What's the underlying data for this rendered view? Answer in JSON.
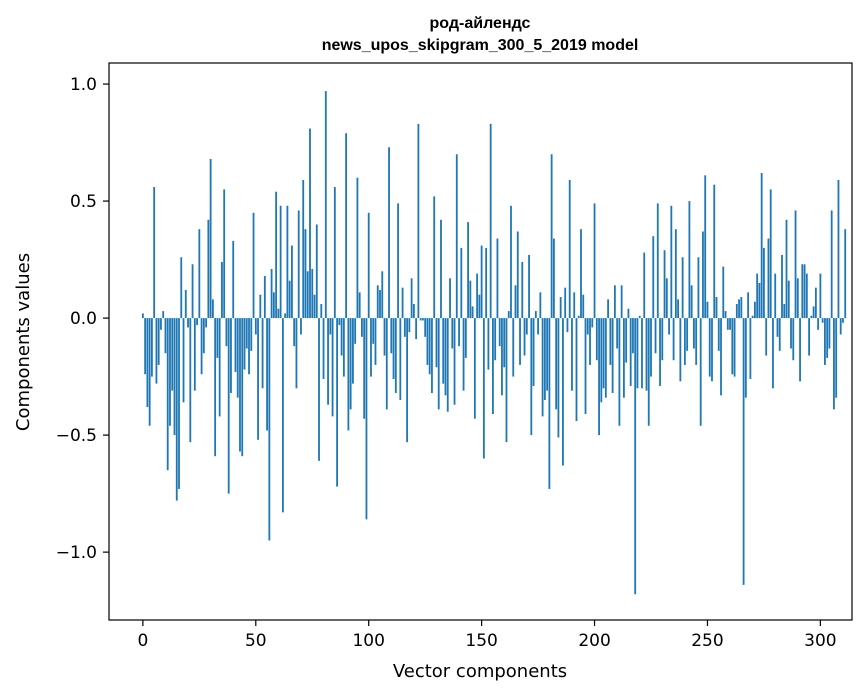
{
  "chart_data": {
    "type": "bar",
    "title": "род-айлендс",
    "subtitle": "news_upos_skipgram_300_5_2019 model",
    "xlabel": "Vector components",
    "ylabel": "Components values",
    "xlim": [
      -15,
      314
    ],
    "ylim": [
      -1.29,
      1.09
    ],
    "xticks": [
      0,
      50,
      100,
      150,
      200,
      250,
      300
    ],
    "xtick_labels": [
      "0",
      "50",
      "100",
      "150",
      "200",
      "250",
      "300"
    ],
    "yticks": [
      -1.0,
      -0.5,
      0.0,
      0.5,
      1.0
    ],
    "ytick_labels": [
      "−1.0",
      "−0.5",
      "0.0",
      "0.5",
      "1.0"
    ],
    "grid": false,
    "bar_color": "#1f77b4",
    "values": [
      0.02,
      -0.24,
      -0.38,
      -0.46,
      -0.25,
      0.56,
      -0.28,
      -0.2,
      -0.05,
      0.03,
      -0.15,
      -0.65,
      -0.46,
      -0.31,
      -0.5,
      -0.78,
      -0.73,
      0.26,
      -0.36,
      0.12,
      -0.04,
      -0.53,
      0.23,
      -0.31,
      -0.03,
      0.38,
      -0.24,
      -0.15,
      -0.04,
      0.42,
      0.68,
      0.08,
      -0.59,
      -0.17,
      -0.42,
      0.24,
      0.55,
      -0.12,
      -0.75,
      -0.32,
      0.33,
      -0.23,
      -0.34,
      -0.57,
      -0.59,
      -0.22,
      -0.13,
      -0.24,
      -0.14,
      0.45,
      -0.07,
      -0.52,
      0.1,
      -0.3,
      0.18,
      -0.48,
      -0.95,
      0.21,
      0.11,
      0.54,
      0.04,
      0.48,
      -0.83,
      0.02,
      0.48,
      0.16,
      0.31,
      -0.12,
      -0.3,
      0.46,
      -0.07,
      0.59,
      0.38,
      0.2,
      0.81,
      0.21,
      0.1,
      0.4,
      -0.61,
      0.06,
      -0.26,
      0.97,
      -0.37,
      -0.07,
      -0.42,
      0.56,
      -0.72,
      -0.03,
      -0.16,
      -0.25,
      0.79,
      -0.48,
      -0.39,
      -0.28,
      -0.11,
      0.6,
      0.11,
      -0.08,
      -0.43,
      -0.86,
      0.45,
      -0.25,
      -0.11,
      -0.2,
      0.14,
      0.12,
      0.2,
      -0.16,
      -0.39,
      0.73,
      -0.15,
      -0.26,
      -0.32,
      0.49,
      -0.35,
      0.13,
      -0.08,
      -0.53,
      -0.06,
      0.17,
      0.06,
      -0.09,
      0.83,
      -0.01,
      -0.01,
      -0.08,
      -0.2,
      -0.24,
      -0.32,
      0.52,
      -0.21,
      -0.39,
      0.42,
      -0.28,
      -0.33,
      -0.4,
      0.17,
      -0.13,
      -0.37,
      0.7,
      -0.12,
      0.3,
      -0.31,
      -0.17,
      0.41,
      0.16,
      0.05,
      -0.43,
      0.19,
      0.1,
      0.31,
      -0.6,
      0.3,
      -0.22,
      0.83,
      -0.41,
      -0.18,
      0.34,
      -0.12,
      -0.33,
      -0.21,
      -0.53,
      0.03,
      0.48,
      -0.25,
      0.14,
      0.37,
      -0.2,
      0.24,
      -0.16,
      -0.07,
      0.27,
      -0.5,
      -0.29,
      0.03,
      -0.07,
      0.11,
      -0.42,
      -0.35,
      -0.31,
      -0.73,
      0.7,
      0.34,
      -0.39,
      -0.51,
      0.09,
      -0.63,
      0.13,
      -0.06,
      0.59,
      -0.31,
      0.11,
      -0.44,
      0.01,
      0.38,
      0.1,
      -0.41,
      -0.07,
      -0.2,
      -0.04,
      0.49,
      -0.18,
      -0.5,
      -0.36,
      -0.3,
      -0.34,
      0.08,
      -0.2,
      -0.32,
      0.14,
      -0.13,
      -0.46,
      0.14,
      -0.34,
      -0.19,
      0.04,
      -0.29,
      -0.15,
      -1.18,
      -0.3,
      0.01,
      -0.3,
      0.28,
      -0.31,
      -0.46,
      -0.25,
      0.35,
      -0.15,
      0.49,
      -0.29,
      -0.18,
      0.29,
      0.17,
      -0.07,
      0.48,
      -0.18,
      0.38,
      0.08,
      -0.27,
      0.26,
      -0.2,
      -0.14,
      0.5,
      0.14,
      -0.13,
      -0.2,
      0.26,
      -0.46,
      0.37,
      0.61,
      0.07,
      -0.25,
      -0.27,
      0.57,
      0.09,
      -0.14,
      -0.33,
      0.22,
      0.03,
      -0.05,
      -0.05,
      -0.24,
      -0.25,
      0.06,
      0.08,
      0.09,
      -1.14,
      -0.34,
      0.11,
      -0.26,
      0.01,
      0.07,
      0.19,
      0.15,
      0.62,
      0.3,
      -0.16,
      0.34,
      0.55,
      -0.3,
      0.19,
      -0.08,
      -0.14,
      0.27,
      0.06,
      0.42,
      0.16,
      -0.13,
      -0.18,
      0.46,
      0.17,
      -0.27,
      0.23,
      0.23,
      0.19,
      -0.16,
      0.01,
      0.05,
      0.13,
      -0.05,
      0.19,
      -0.02,
      -0.2,
      -0.17,
      -0.13,
      0.46,
      -0.39,
      -0.34,
      0.59,
      -0.07,
      -0.02,
      0.38
    ]
  }
}
